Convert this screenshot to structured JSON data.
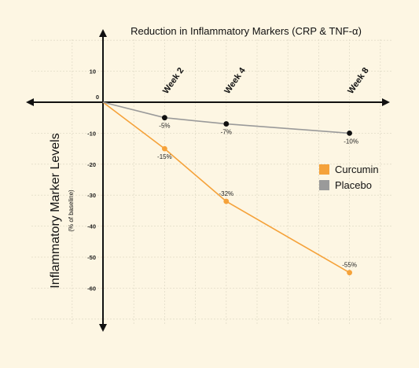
{
  "chart_data": {
    "type": "line",
    "title": "Reduction in Inflammatory Markers (CRP & TNF-α)",
    "ylabel": "Inflammatory Marker Levels",
    "ylabel_sub": "(% of baseline)",
    "origin_label": "0",
    "x": [
      0,
      2,
      4,
      8
    ],
    "x_tick_labels": [
      "Week 2",
      "Week 4",
      "Week 8"
    ],
    "y_ticks": [
      10,
      -10,
      -20,
      -30,
      -40,
      -50,
      -60
    ],
    "ylim": [
      -70,
      20
    ],
    "grid": true,
    "legend_position": "right",
    "series": [
      {
        "name": "Curcumin",
        "color": "#f5a23a",
        "values": [
          0,
          -15,
          -32,
          -55
        ],
        "labels": [
          "",
          "-15%",
          "-32%",
          "-55%"
        ]
      },
      {
        "name": "Placebo",
        "color": "#9a9a9a",
        "marker_color": "#111111",
        "values": [
          0,
          -5,
          -7,
          -10
        ],
        "labels": [
          "",
          "-5%",
          "-7%",
          "-10%"
        ]
      }
    ]
  }
}
